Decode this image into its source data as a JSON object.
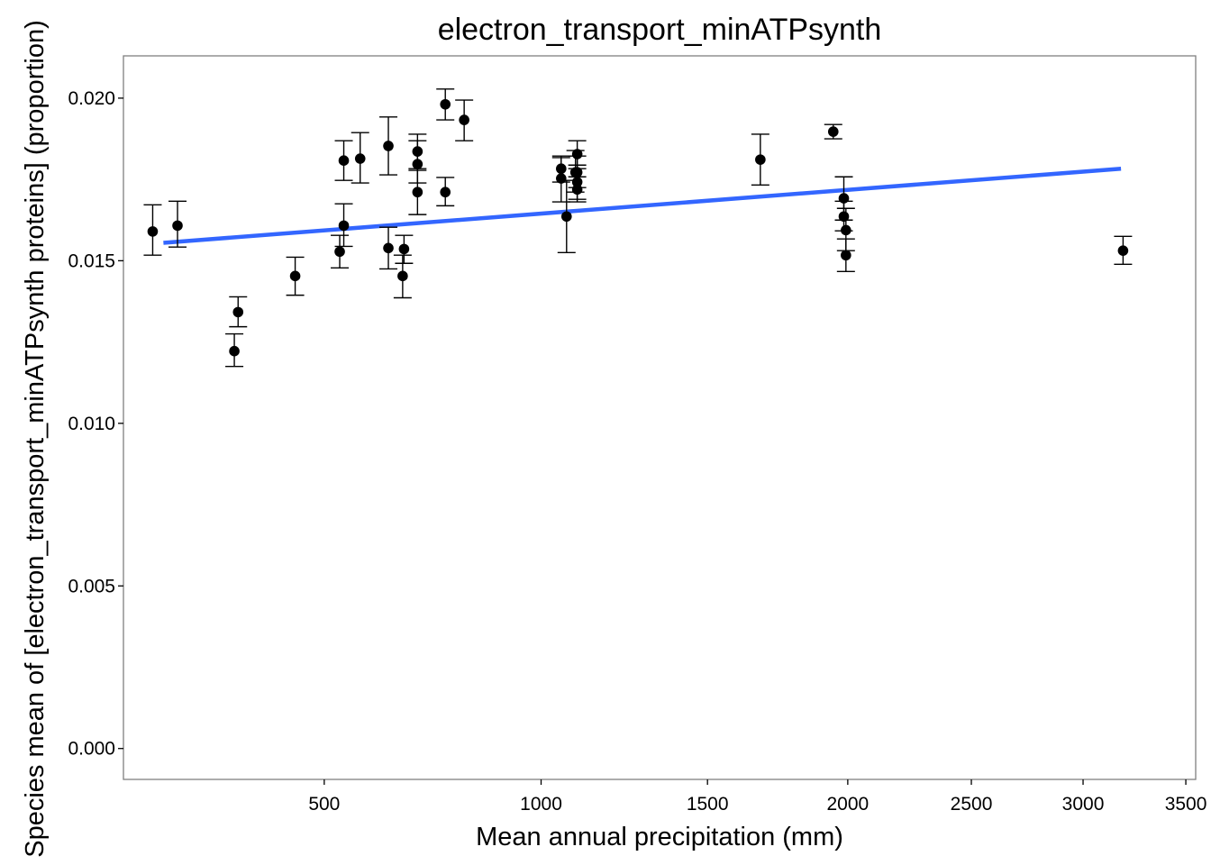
{
  "chart_data": {
    "type": "scatter",
    "title": "electron_transport_minATPsynth",
    "xlabel": "Mean annual precipitation (mm)",
    "ylabel": "Species mean of [electron_transport_minATPsynth proteins] (proportion)",
    "x_scale": "sqrt",
    "xlim": [
      190,
      3550
    ],
    "ylim": [
      -0.00095,
      0.0213
    ],
    "x_ticks": [
      500,
      1000,
      1500,
      2000,
      2500,
      3000,
      3500
    ],
    "x_tick_labels": [
      "500",
      "1000",
      "1500",
      "2000",
      "2500",
      "3000",
      "3500"
    ],
    "y_ticks": [
      0.0,
      0.005,
      0.01,
      0.015,
      0.02
    ],
    "y_tick_labels": [
      "0.000",
      "0.005",
      "0.010",
      "0.015",
      "0.020"
    ],
    "grid": false,
    "points": [
      {
        "x": 226,
        "y": 0.0159,
        "ymin": 0.01517,
        "ymax": 0.01672
      },
      {
        "x": 259,
        "y": 0.01608,
        "ymin": 0.01542,
        "ymax": 0.01683
      },
      {
        "x": 343,
        "y": 0.01222,
        "ymin": 0.01175,
        "ymax": 0.01275
      },
      {
        "x": 349,
        "y": 0.01342,
        "ymin": 0.01297,
        "ymax": 0.01389
      },
      {
        "x": 446,
        "y": 0.01453,
        "ymin": 0.01394,
        "ymax": 0.01511
      },
      {
        "x": 530,
        "y": 0.01528,
        "ymin": 0.01478,
        "ymax": 0.01578
      },
      {
        "x": 538,
        "y": 0.01808,
        "ymin": 0.01747,
        "ymax": 0.01869
      },
      {
        "x": 538,
        "y": 0.01608,
        "ymin": 0.01544,
        "ymax": 0.01675
      },
      {
        "x": 571,
        "y": 0.01814,
        "ymin": 0.01739,
        "ymax": 0.01894
      },
      {
        "x": 630,
        "y": 0.01853,
        "ymin": 0.01764,
        "ymax": 0.01942
      },
      {
        "x": 630,
        "y": 0.01539,
        "ymin": 0.01475,
        "ymax": 0.01603
      },
      {
        "x": 661,
        "y": 0.01453,
        "ymin": 0.01386,
        "ymax": 0.01517
      },
      {
        "x": 664,
        "y": 0.01536,
        "ymin": 0.01492,
        "ymax": 0.01578
      },
      {
        "x": 694,
        "y": 0.01836,
        "ymin": 0.01778,
        "ymax": 0.01889
      },
      {
        "x": 694,
        "y": 0.01797,
        "ymin": 0.01739,
        "ymax": 0.01869
      },
      {
        "x": 694,
        "y": 0.01711,
        "ymin": 0.01642,
        "ymax": 0.01783
      },
      {
        "x": 758,
        "y": 0.01981,
        "ymin": 0.01933,
        "ymax": 0.02028
      },
      {
        "x": 758,
        "y": 0.01711,
        "ymin": 0.01669,
        "ymax": 0.01756
      },
      {
        "x": 803,
        "y": 0.01933,
        "ymin": 0.01869,
        "ymax": 0.01994
      },
      {
        "x": 1055,
        "y": 0.01783,
        "ymin": 0.01742,
        "ymax": 0.01817
      },
      {
        "x": 1055,
        "y": 0.01753,
        "ymin": 0.01681,
        "ymax": 0.01822
      },
      {
        "x": 1070,
        "y": 0.01636,
        "ymin": 0.01525,
        "ymax": 0.01747
      },
      {
        "x": 1095,
        "y": 0.01772,
        "ymin": 0.01711,
        "ymax": 0.01839
      },
      {
        "x": 1100,
        "y": 0.01828,
        "ymin": 0.01783,
        "ymax": 0.01869
      },
      {
        "x": 1100,
        "y": 0.01772,
        "ymin": 0.01725,
        "ymax": 0.01822
      },
      {
        "x": 1100,
        "y": 0.01742,
        "ymin": 0.01689,
        "ymax": 0.01794
      },
      {
        "x": 1100,
        "y": 0.01719,
        "ymin": 0.01681,
        "ymax": 0.01758
      },
      {
        "x": 1680,
        "y": 0.01811,
        "ymin": 0.01733,
        "ymax": 0.01889
      },
      {
        "x": 1945,
        "y": 0.01897,
        "ymin": 0.01875,
        "ymax": 0.01919
      },
      {
        "x": 1985,
        "y": 0.01692,
        "ymin": 0.01625,
        "ymax": 0.01758
      },
      {
        "x": 1985,
        "y": 0.01636,
        "ymin": 0.01592,
        "ymax": 0.01683
      },
      {
        "x": 1993,
        "y": 0.01594,
        "ymin": 0.01531,
        "ymax": 0.01661
      },
      {
        "x": 1993,
        "y": 0.01517,
        "ymin": 0.01467,
        "ymax": 0.01567
      },
      {
        "x": 3190,
        "y": 0.01531,
        "ymin": 0.01489,
        "ymax": 0.01575
      }
    ],
    "trend_line": {
      "x": [
        240,
        3180
      ],
      "y": [
        0.01555,
        0.01783
      ],
      "color": "#3366ff"
    },
    "point_color": "#000000",
    "panel_border_color": "#7f7f7f"
  }
}
